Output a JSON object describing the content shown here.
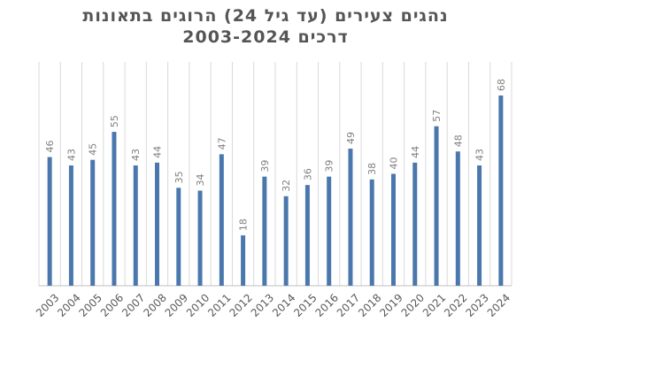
{
  "chart_data": {
    "type": "bar",
    "title": "נהגים צעירים (עד גיל 24) הרוגים בתאונות",
    "subtitle": "דרכים 2003-2024",
    "categories": [
      "2003",
      "2004",
      "2005",
      "2006",
      "2007",
      "2008",
      "2009",
      "2010",
      "2011",
      "2012",
      "2013",
      "2014",
      "2015",
      "2016",
      "2017",
      "2018",
      "2019",
      "2020",
      "2021",
      "2022",
      "2023",
      "2024"
    ],
    "values": [
      46,
      43,
      45,
      55,
      43,
      44,
      35,
      34,
      47,
      18,
      39,
      32,
      36,
      39,
      49,
      38,
      40,
      44,
      57,
      48,
      43,
      68
    ],
    "ylim": [
      0,
      80
    ],
    "grid": true,
    "legend": "none",
    "bar_color": "#4a78ad"
  }
}
